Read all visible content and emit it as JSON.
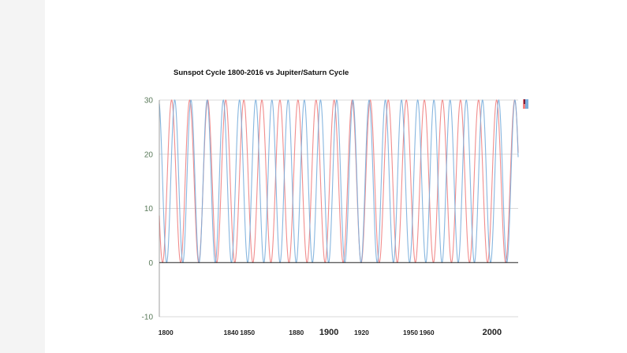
{
  "colors": {
    "page_bg": "#ffffff",
    "outer_bg": "#f4f4f4",
    "grid": "#cccccc",
    "zero_line": "#222222",
    "series_sunspot": "#f08080",
    "series_jupiter_saturn": "#7aaedc"
  },
  "chart_data": {
    "type": "line",
    "title": "Sunspot Cycle 1800-2016 vs Jupiter/Saturn Cycle",
    "xlabel": "",
    "ylabel": "",
    "xlim": [
      1796,
      2016
    ],
    "ylim": [
      -10,
      30
    ],
    "yticks": [
      -10,
      0,
      10,
      20,
      30
    ],
    "xtick_labels": [
      "1800",
      "1840",
      "1850",
      "1880",
      "1900",
      "1920",
      "1950",
      "1960",
      "2000"
    ],
    "grid": true,
    "legend": "top-right",
    "series": [
      {
        "color": "#f08080",
        "period_years": 11.07,
        "phase_year": 1798.0,
        "min": 0,
        "max": 30
      },
      {
        "color": "#7aaedc",
        "period_years": 9.93,
        "phase_year": 1800.5,
        "min": 0,
        "max": 30
      }
    ]
  }
}
